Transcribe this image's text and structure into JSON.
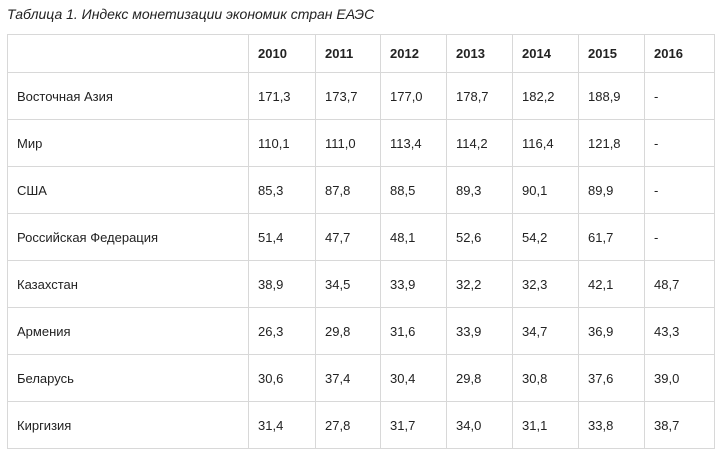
{
  "caption": "Таблица 1. Индекс монетизации экономик стран ЕАЭС",
  "table": {
    "columns": [
      "",
      "2010",
      "2011",
      "2012",
      "2013",
      "2014",
      "2015",
      "2016"
    ],
    "rows": [
      {
        "name": "Восточная Азия",
        "values": [
          "171,3",
          "173,7",
          "177,0",
          "178,7",
          "182,2",
          "188,9",
          "-"
        ]
      },
      {
        "name": "Мир",
        "values": [
          "110,1",
          "111,0",
          "113,4",
          "114,2",
          "116,4",
          "121,8",
          "-"
        ]
      },
      {
        "name": "США",
        "values": [
          "85,3",
          "87,8",
          "88,5",
          "89,3",
          "90,1",
          "89,9",
          "-"
        ]
      },
      {
        "name": "Российская Федерация",
        "values": [
          "51,4",
          "47,7",
          "48,1",
          "52,6",
          "54,2",
          "61,7",
          "-"
        ]
      },
      {
        "name": "Казахстан",
        "values": [
          "38,9",
          "34,5",
          "33,9",
          "32,2",
          "32,3",
          "42,1",
          "48,7"
        ]
      },
      {
        "name": "Армения",
        "values": [
          "26,3",
          "29,8",
          "31,6",
          "33,9",
          "34,7",
          "36,9",
          "43,3"
        ]
      },
      {
        "name": "Беларусь",
        "values": [
          "30,6",
          "37,4",
          "30,4",
          "29,8",
          "30,8",
          "37,6",
          "39,0"
        ]
      },
      {
        "name": "Киргизия",
        "values": [
          "31,4",
          "27,8",
          "31,7",
          "34,0",
          "31,1",
          "33,8",
          "38,7"
        ]
      }
    ]
  }
}
